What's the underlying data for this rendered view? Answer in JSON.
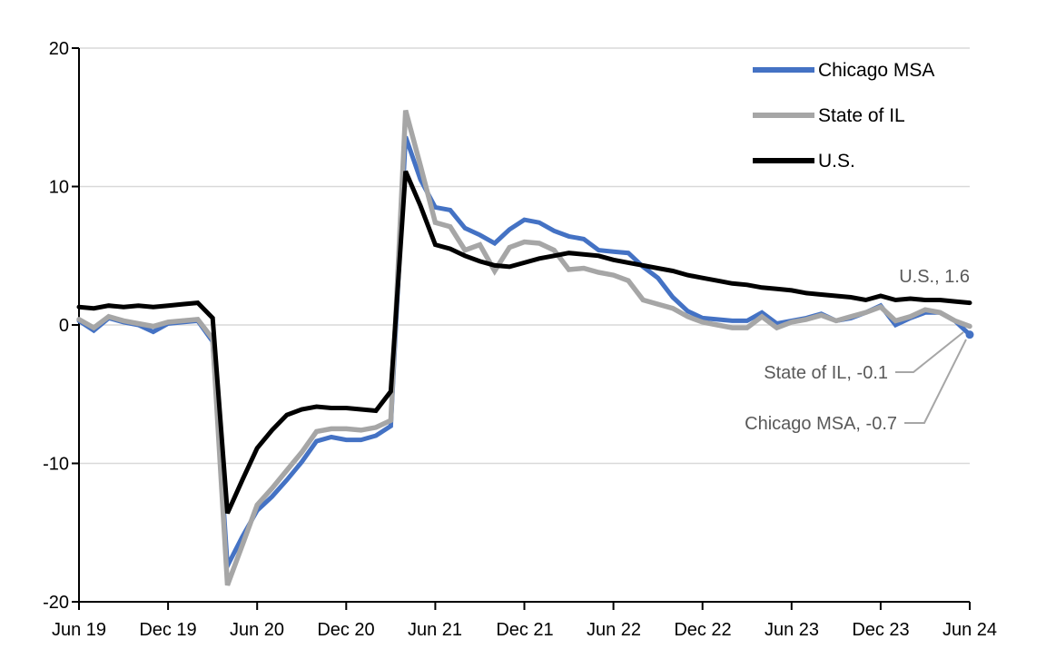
{
  "chart_data": {
    "type": "line",
    "title": "",
    "frequency": "monthly",
    "x_start": "Jun 2019",
    "x_end": "Jun 2024",
    "xlabel": "",
    "ylabel": "",
    "ylim": [
      -20,
      20
    ],
    "y_tick_labels": [
      "20",
      "10",
      "0",
      "-10",
      "-20"
    ],
    "x_tick_labels": [
      "Jun 19",
      "Dec 19",
      "Jun 20",
      "Dec 20",
      "Jun 21",
      "Dec 21",
      "Jun 22",
      "Dec 22",
      "Jun 23",
      "Dec 23",
      "Jun 24"
    ],
    "grid": "horizontal",
    "gridline_color": "#D9D9D9",
    "axis_color": "#000000",
    "legend_position": "top-right",
    "legend": [
      "Chicago MSA",
      "State of IL",
      "U.S."
    ],
    "series": [
      {
        "name": "Chicago MSA",
        "color": "#4472C4",
        "end_value": -0.7,
        "end_marker": "dot",
        "values": [
          0.3,
          -0.4,
          0.5,
          0.2,
          0.0,
          -0.5,
          0.1,
          0.2,
          0.3,
          -1.2,
          -17.4,
          -15.3,
          -13.4,
          -12.4,
          -11.2,
          -9.9,
          -8.4,
          -8.1,
          -8.3,
          -8.3,
          -8.0,
          -7.3,
          13.6,
          10.5,
          8.5,
          8.3,
          7.0,
          6.5,
          5.9,
          6.9,
          7.6,
          7.4,
          6.8,
          6.4,
          6.2,
          5.4,
          5.3,
          5.2,
          4.2,
          3.4,
          2.0,
          1.0,
          0.5,
          0.4,
          0.3,
          0.3,
          0.9,
          0.1,
          0.3,
          0.5,
          0.8,
          0.3,
          0.5,
          0.9,
          1.4,
          0.0,
          0.5,
          0.9,
          0.9,
          0.3,
          -0.7
        ]
      },
      {
        "name": "State of IL",
        "color": "#A6A6A6",
        "end_value": -0.1,
        "end_marker": "none",
        "values": [
          0.4,
          -0.2,
          0.6,
          0.3,
          0.1,
          -0.1,
          0.2,
          0.3,
          0.4,
          -1.0,
          -18.8,
          -15.9,
          -13.0,
          -11.8,
          -10.5,
          -9.2,
          -7.7,
          -7.5,
          -7.5,
          -7.6,
          -7.4,
          -6.9,
          15.5,
          11.5,
          7.4,
          7.1,
          5.4,
          5.8,
          3.9,
          5.6,
          6.0,
          5.9,
          5.4,
          4.0,
          4.1,
          3.8,
          3.6,
          3.2,
          1.8,
          1.5,
          1.2,
          0.6,
          0.2,
          0.0,
          -0.2,
          -0.2,
          0.6,
          -0.2,
          0.2,
          0.4,
          0.7,
          0.3,
          0.6,
          0.9,
          1.3,
          0.3,
          0.6,
          1.1,
          0.9,
          0.3,
          -0.1
        ]
      },
      {
        "name": "U.S.",
        "color": "#000000",
        "end_value": 1.6,
        "end_marker": "none",
        "values": [
          1.3,
          1.2,
          1.4,
          1.3,
          1.4,
          1.3,
          1.4,
          1.5,
          1.6,
          0.5,
          -13.6,
          -11.2,
          -8.9,
          -7.6,
          -6.5,
          -6.1,
          -5.9,
          -6.0,
          -6.0,
          -6.1,
          -6.2,
          -4.8,
          11.1,
          8.6,
          5.8,
          5.5,
          5.0,
          4.6,
          4.3,
          4.2,
          4.5,
          4.8,
          5.0,
          5.2,
          5.1,
          5.0,
          4.7,
          4.5,
          4.3,
          4.1,
          3.9,
          3.6,
          3.4,
          3.2,
          3.0,
          2.9,
          2.7,
          2.6,
          2.5,
          2.3,
          2.2,
          2.1,
          2.0,
          1.8,
          2.1,
          1.8,
          1.9,
          1.8,
          1.8,
          1.7,
          1.6
        ]
      }
    ],
    "annotations": [
      {
        "text": "U.S., 1.6",
        "series": "U.S.",
        "value": 1.6
      },
      {
        "text": "State of IL, -0.1",
        "series": "State of IL",
        "value": -0.1
      },
      {
        "text": "Chicago MSA, -0.7",
        "series": "Chicago MSA",
        "value": -0.7
      }
    ],
    "annotation_color": "#595959",
    "leader_line_color": "#A6A6A6"
  }
}
